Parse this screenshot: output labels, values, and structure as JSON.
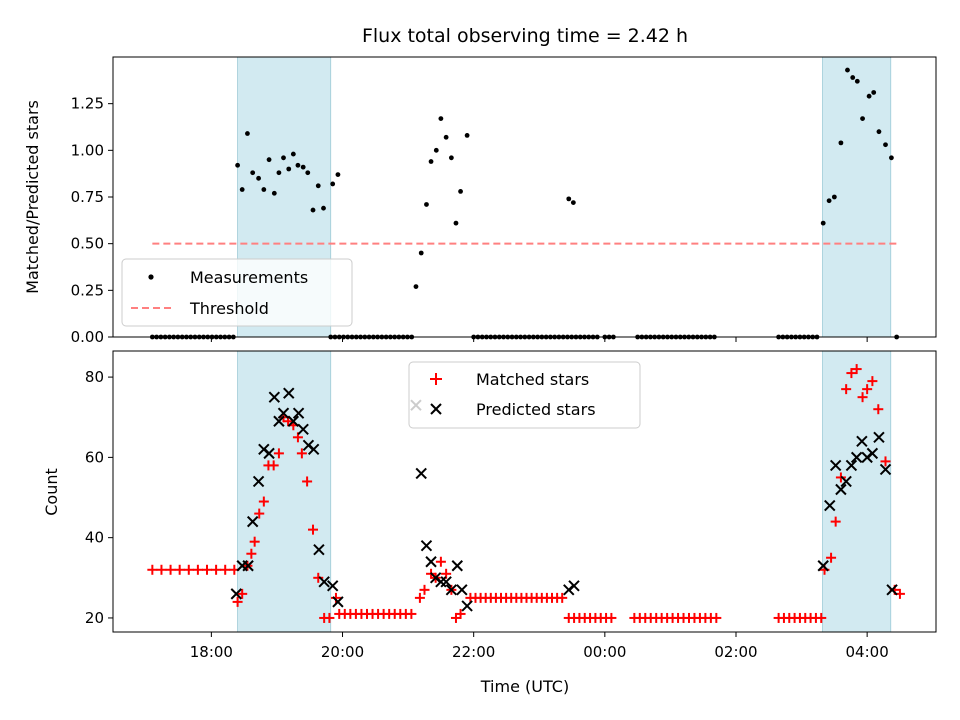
{
  "chart_data": {
    "type": "scatter",
    "title": "Flux total observing time = 2.42 h",
    "xlabel": "Time (UTC)",
    "x_units": "hours after 00:00 UTC of the observation start day",
    "xlim": [
      16.5,
      29.05
    ],
    "x_ticks": [
      {
        "value": 18,
        "label": "18:00"
      },
      {
        "value": 20,
        "label": "20:00"
      },
      {
        "value": 22,
        "label": "22:00"
      },
      {
        "value": 24,
        "label": "00:00"
      },
      {
        "value": 26,
        "label": "02:00"
      },
      {
        "value": 28,
        "label": "04:00"
      }
    ],
    "shaded_intervals": [
      [
        18.4,
        19.82
      ],
      [
        27.32,
        28.36
      ]
    ],
    "shade_color": "#add8e6",
    "top_panel": {
      "ylabel": "Matched/Predicted stars",
      "ylim": [
        0,
        1.5
      ],
      "y_ticks": [
        {
          "value": 0,
          "label": "0.00"
        },
        {
          "value": 0.25,
          "label": "0.25"
        },
        {
          "value": 0.5,
          "label": "0.50"
        },
        {
          "value": 0.75,
          "label": "0.75"
        },
        {
          "value": 1.0,
          "label": "1.00"
        },
        {
          "value": 1.25,
          "label": "1.25"
        }
      ],
      "threshold": {
        "value": 0.5,
        "x_start": 17.1,
        "x_end": 28.5,
        "color": "#ff8080"
      },
      "legend": {
        "position": "lower-left",
        "measurements_label": "Measurements",
        "threshold_label": "Threshold"
      },
      "measurements_color": "#000000",
      "zero_run_intervals": [
        [
          17.1,
          18.35
        ],
        [
          19.82,
          21.1
        ],
        [
          22.0,
          23.9
        ],
        [
          24.0,
          24.15
        ],
        [
          24.5,
          25.7
        ],
        [
          26.65,
          27.25
        ],
        [
          28.45,
          28.5
        ]
      ],
      "measurements": [
        [
          18.4,
          0.92
        ],
        [
          18.47,
          0.79
        ],
        [
          18.55,
          1.09
        ],
        [
          18.63,
          0.88
        ],
        [
          18.72,
          0.85
        ],
        [
          18.8,
          0.79
        ],
        [
          18.88,
          0.95
        ],
        [
          18.96,
          0.77
        ],
        [
          19.03,
          0.88
        ],
        [
          19.1,
          0.96
        ],
        [
          19.18,
          0.9
        ],
        [
          19.25,
          0.98
        ],
        [
          19.32,
          0.92
        ],
        [
          19.4,
          0.91
        ],
        [
          19.47,
          0.88
        ],
        [
          19.55,
          0.68
        ],
        [
          19.63,
          0.81
        ],
        [
          19.71,
          0.69
        ],
        [
          19.85,
          0.82
        ],
        [
          19.93,
          0.87
        ],
        [
          21.12,
          0.27
        ],
        [
          21.2,
          0.45
        ],
        [
          21.28,
          0.71
        ],
        [
          21.35,
          0.94
        ],
        [
          21.43,
          1.0
        ],
        [
          21.5,
          1.17
        ],
        [
          21.58,
          1.07
        ],
        [
          21.66,
          0.96
        ],
        [
          21.73,
          0.61
        ],
        [
          21.8,
          0.78
        ],
        [
          21.9,
          1.08
        ],
        [
          23.45,
          0.74
        ],
        [
          23.52,
          0.72
        ],
        [
          27.33,
          0.61
        ],
        [
          27.42,
          0.73
        ],
        [
          27.5,
          0.75
        ],
        [
          27.6,
          1.04
        ],
        [
          27.7,
          1.43
        ],
        [
          27.78,
          1.39
        ],
        [
          27.85,
          1.37
        ],
        [
          27.93,
          1.17
        ],
        [
          28.03,
          1.29
        ],
        [
          28.1,
          1.31
        ],
        [
          28.18,
          1.1
        ],
        [
          28.28,
          1.03
        ],
        [
          28.37,
          0.96
        ]
      ]
    },
    "bottom_panel": {
      "ylabel": "Count",
      "ylim": [
        16.5,
        86.5
      ],
      "y_ticks": [
        {
          "value": 20,
          "label": "20"
        },
        {
          "value": 40,
          "label": "40"
        },
        {
          "value": 60,
          "label": "60"
        },
        {
          "value": 80,
          "label": "80"
        }
      ],
      "legend": {
        "position": "upper-center",
        "matched_label": "Matched stars",
        "predicted_label": "Predicted stars"
      },
      "matched_color": "#ff0000",
      "predicted_color": "#000000",
      "runs": [
        {
          "x_start": 17.1,
          "x_end": 18.35,
          "count": 10,
          "value": 32
        },
        {
          "x_start": 19.95,
          "x_end": 21.05,
          "count": 14,
          "value": 21
        },
        {
          "x_start": 21.95,
          "x_end": 23.35,
          "count": 19,
          "value": 25
        },
        {
          "x_start": 23.45,
          "x_end": 24.1,
          "count": 9,
          "value": 20
        },
        {
          "x_start": 24.45,
          "x_end": 25.7,
          "count": 16,
          "value": 20
        },
        {
          "x_start": 26.65,
          "x_end": 27.3,
          "count": 9,
          "value": 20
        }
      ],
      "matched": [
        [
          18.4,
          24
        ],
        [
          18.47,
          26
        ],
        [
          18.55,
          33
        ],
        [
          18.61,
          36
        ],
        [
          18.66,
          39
        ],
        [
          18.73,
          46
        ],
        [
          18.8,
          49
        ],
        [
          18.87,
          58
        ],
        [
          18.95,
          58
        ],
        [
          19.03,
          61
        ],
        [
          19.1,
          70
        ],
        [
          19.17,
          69
        ],
        [
          19.25,
          68
        ],
        [
          19.32,
          65
        ],
        [
          19.38,
          61
        ],
        [
          19.46,
          54
        ],
        [
          19.55,
          42
        ],
        [
          19.63,
          30
        ],
        [
          19.72,
          20
        ],
        [
          19.8,
          20
        ],
        [
          19.9,
          25
        ],
        [
          21.18,
          25
        ],
        [
          21.25,
          27
        ],
        [
          21.35,
          31
        ],
        [
          21.42,
          30
        ],
        [
          21.5,
          34
        ],
        [
          21.58,
          31
        ],
        [
          21.66,
          27
        ],
        [
          21.73,
          20
        ],
        [
          21.8,
          21
        ],
        [
          27.35,
          32
        ],
        [
          27.45,
          35
        ],
        [
          27.52,
          44
        ],
        [
          27.6,
          55
        ],
        [
          27.68,
          77
        ],
        [
          27.76,
          81
        ],
        [
          27.84,
          82
        ],
        [
          27.93,
          75
        ],
        [
          28.0,
          77
        ],
        [
          28.08,
          79
        ],
        [
          28.17,
          72
        ],
        [
          28.28,
          59
        ],
        [
          28.42,
          27
        ],
        [
          28.5,
          26
        ]
      ],
      "predicted": [
        [
          18.38,
          26
        ],
        [
          18.47,
          33
        ],
        [
          18.56,
          33
        ],
        [
          18.63,
          44
        ],
        [
          18.72,
          54
        ],
        [
          18.8,
          62
        ],
        [
          18.88,
          61
        ],
        [
          18.96,
          75
        ],
        [
          19.03,
          69
        ],
        [
          19.1,
          71
        ],
        [
          19.18,
          76
        ],
        [
          19.25,
          69
        ],
        [
          19.33,
          71
        ],
        [
          19.4,
          67
        ],
        [
          19.48,
          63
        ],
        [
          19.56,
          62
        ],
        [
          19.64,
          37
        ],
        [
          19.72,
          29
        ],
        [
          19.85,
          28
        ],
        [
          19.93,
          24
        ],
        [
          21.12,
          73
        ],
        [
          21.2,
          56
        ],
        [
          21.28,
          38
        ],
        [
          21.35,
          34
        ],
        [
          21.42,
          30
        ],
        [
          21.5,
          29
        ],
        [
          21.58,
          29
        ],
        [
          21.66,
          27
        ],
        [
          21.75,
          33
        ],
        [
          21.82,
          27
        ],
        [
          21.9,
          23
        ],
        [
          23.45,
          27
        ],
        [
          23.53,
          28
        ],
        [
          27.33,
          33
        ],
        [
          27.43,
          48
        ],
        [
          27.52,
          58
        ],
        [
          27.6,
          52
        ],
        [
          27.68,
          54
        ],
        [
          27.76,
          58
        ],
        [
          27.84,
          60
        ],
        [
          27.92,
          64
        ],
        [
          28.0,
          60
        ],
        [
          28.08,
          61
        ],
        [
          28.18,
          65
        ],
        [
          28.28,
          57
        ],
        [
          28.38,
          27
        ]
      ]
    }
  }
}
